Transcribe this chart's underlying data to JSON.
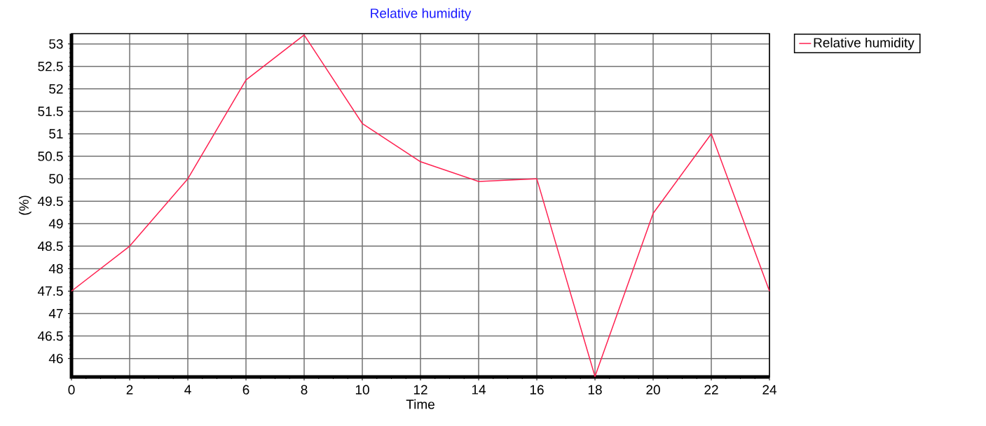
{
  "chart_data": {
    "type": "line",
    "title": "Relative humidity",
    "xlabel": "Time",
    "ylabel": "(%)",
    "x": [
      0,
      2,
      4,
      6,
      8,
      10,
      12,
      14,
      16,
      18,
      20,
      22,
      24
    ],
    "series": [
      {
        "name": "Relative humidity",
        "color": "#ff2050",
        "values": [
          47.5,
          48.5,
          50,
          52.2,
          53.2,
          51.23,
          50.38,
          49.94,
          50,
          45.6,
          49.23,
          51,
          47.5
        ]
      }
    ],
    "xlim": [
      0,
      24
    ],
    "ylim": [
      45.59,
      53.23
    ],
    "xticks": [
      0,
      2,
      4,
      6,
      8,
      10,
      12,
      14,
      16,
      18,
      20,
      22,
      24
    ],
    "yticks": [
      46,
      46.5,
      47,
      47.5,
      48,
      48.5,
      49,
      49.5,
      50,
      50.5,
      51,
      51.5,
      52,
      52.5,
      53
    ],
    "grid": true,
    "legend": "top right",
    "marker": "none",
    "line_style": "solid"
  }
}
